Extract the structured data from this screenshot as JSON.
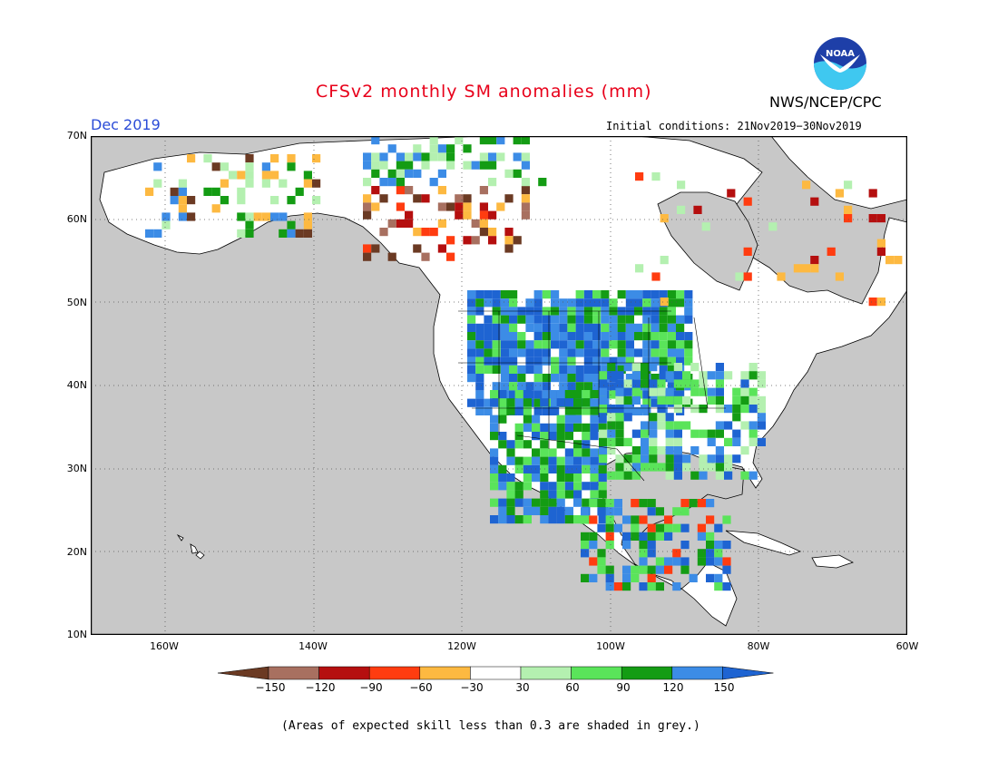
{
  "title": "CFSv2 monthly SM anomalies (mm)",
  "agency": "NWS/NCEP/CPC",
  "logo_text": "NOAA",
  "valid_month": "Dec 2019",
  "initial_conditions": "Initial conditions: 21Nov2019−30Nov2019",
  "footnote": "(Areas of expected skill less than 0.3 are shaded in grey.)",
  "map": {
    "lon_range": [
      -170,
      -60
    ],
    "lat_range": [
      10,
      70
    ],
    "lat_labels": [
      "70N",
      "60N",
      "50N",
      "40N",
      "30N",
      "20N",
      "10N"
    ],
    "lon_labels": [
      "160W",
      "140W",
      "120W",
      "100W",
      "80W",
      "60W"
    ],
    "ocean_color": "#c8c8c8",
    "grid": "dotted"
  },
  "colorbar": {
    "labels": [
      "−150",
      "−120",
      "−90",
      "−60",
      "−30",
      "30",
      "60",
      "90",
      "120",
      "150"
    ],
    "colors": [
      "#6b3a23",
      "#a87060",
      "#b50f0f",
      "#ff3c10",
      "#fdb941",
      "#ffffff",
      "#b4f0b0",
      "#5ae45a",
      "#149c14",
      "#3c8ce6",
      "#1e64d2"
    ]
  }
}
